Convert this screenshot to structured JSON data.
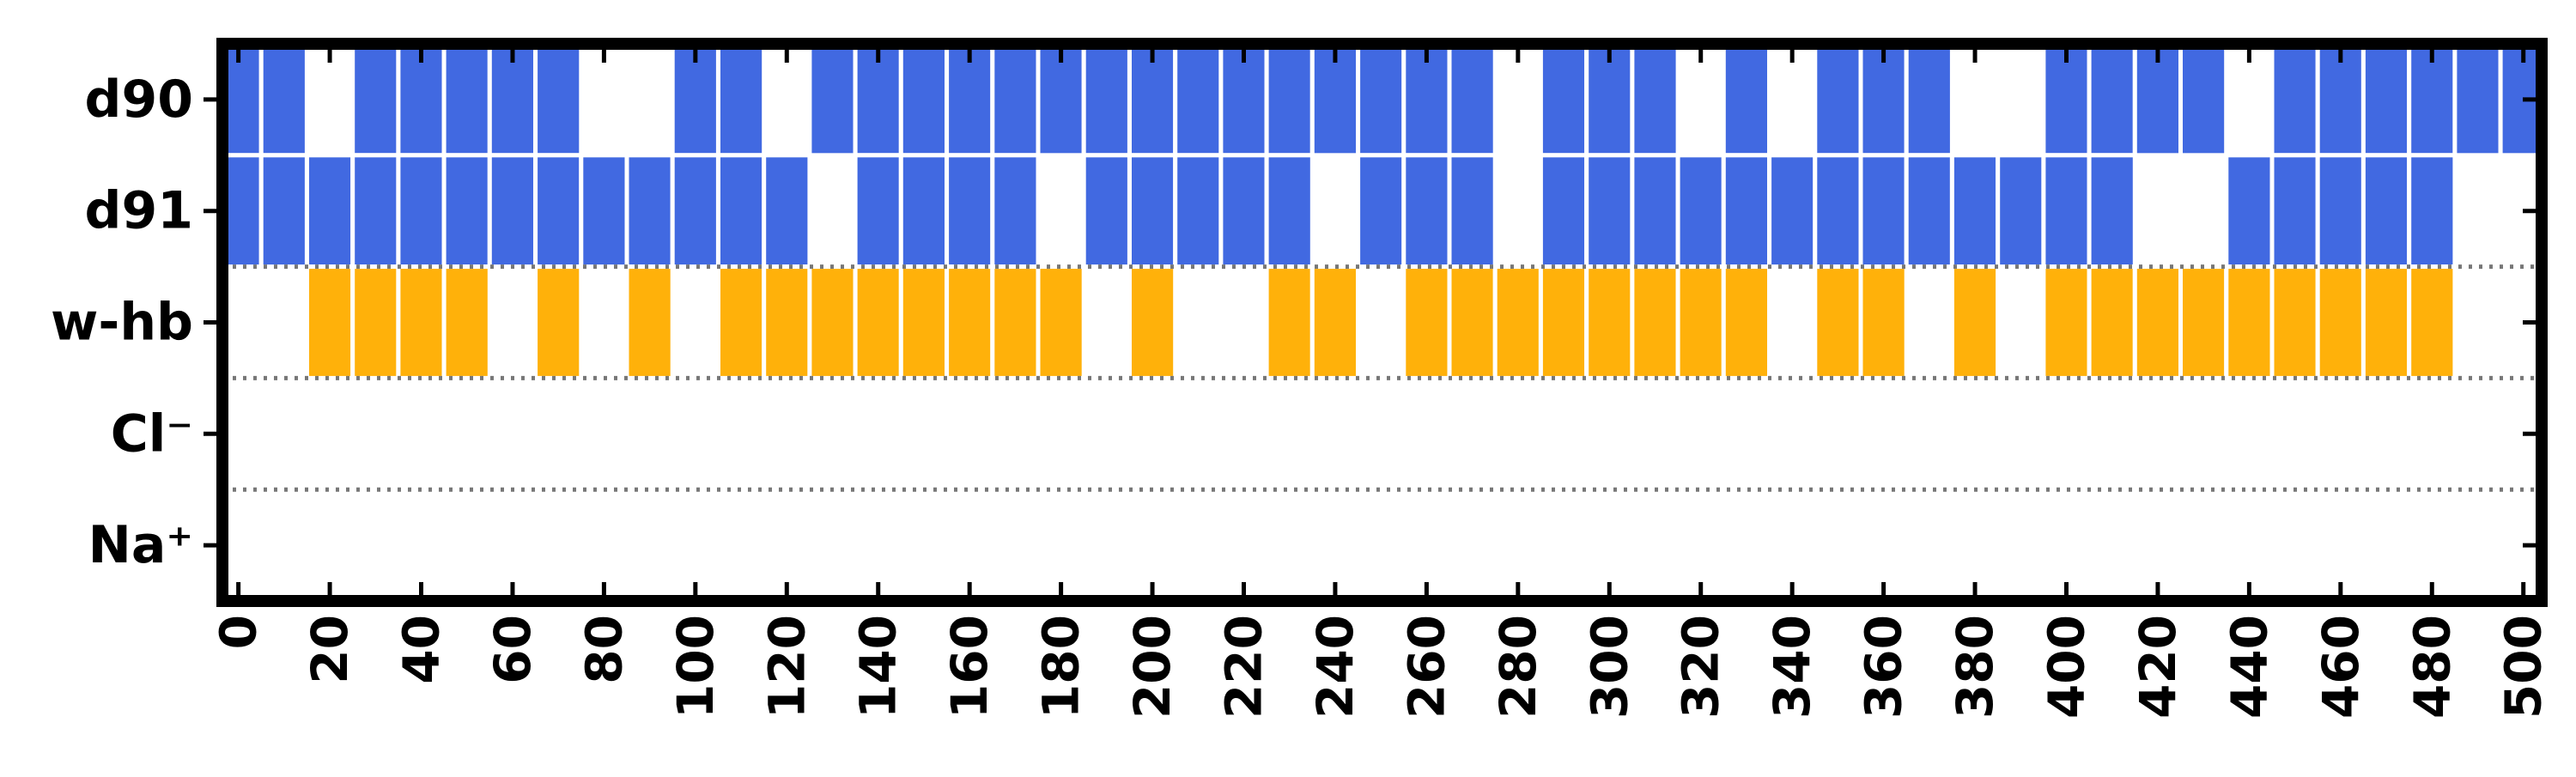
{
  "chart_data": {
    "type": "heatmap",
    "title": "",
    "xlabel": "",
    "ylabel": "",
    "xlim": [
      -3.5,
      504
    ],
    "x_ticks": [
      0,
      20,
      40,
      60,
      80,
      100,
      120,
      140,
      160,
      180,
      200,
      220,
      240,
      260,
      280,
      300,
      320,
      340,
      360,
      380,
      400,
      420,
      440,
      460,
      480,
      500
    ],
    "x_tick_labels": [
      "0",
      "20",
      "40",
      "60",
      "80",
      "100",
      "120",
      "140",
      "160",
      "180",
      "200",
      "220",
      "240",
      "260",
      "280",
      "300",
      "320",
      "340",
      "360",
      "380",
      "400",
      "420",
      "440",
      "460",
      "480",
      "500"
    ],
    "bin_width": 10,
    "rows": [
      {
        "label": "d90",
        "color": "#4169e1",
        "occupied_bins": [
          0,
          10,
          30,
          40,
          50,
          60,
          70,
          100,
          110,
          130,
          140,
          150,
          160,
          170,
          180,
          190,
          200,
          210,
          220,
          230,
          240,
          250,
          260,
          270,
          290,
          300,
          310,
          330,
          350,
          360,
          370,
          400,
          410,
          420,
          430,
          450,
          460,
          470,
          480,
          490,
          500
        ]
      },
      {
        "label": "d91",
        "color": "#4169e1",
        "occupied_bins": [
          0,
          10,
          20,
          30,
          40,
          50,
          60,
          70,
          80,
          90,
          100,
          110,
          120,
          140,
          150,
          160,
          170,
          190,
          200,
          210,
          220,
          230,
          250,
          260,
          270,
          290,
          300,
          310,
          320,
          330,
          340,
          350,
          360,
          370,
          380,
          390,
          400,
          410,
          440,
          450,
          460,
          470,
          480
        ]
      },
      {
        "label": "w-hb",
        "color": "#ffb10a",
        "occupied_bins": [
          20,
          30,
          40,
          50,
          70,
          90,
          110,
          120,
          130,
          140,
          150,
          160,
          170,
          180,
          200,
          230,
          240,
          260,
          270,
          280,
          290,
          300,
          310,
          320,
          330,
          350,
          360,
          380,
          400,
          410,
          420,
          430,
          440,
          450,
          460,
          470,
          480
        ]
      },
      {
        "label": "Cl⁻",
        "color": "#4169e1",
        "occupied_bins": []
      },
      {
        "label": "Na⁺",
        "color": "#4169e1",
        "occupied_bins": []
      }
    ],
    "group_separators_after_row": [
      1,
      2,
      3
    ],
    "separator_style": "dotted",
    "separator_color": "#777777",
    "grid": false,
    "legend": "none"
  }
}
